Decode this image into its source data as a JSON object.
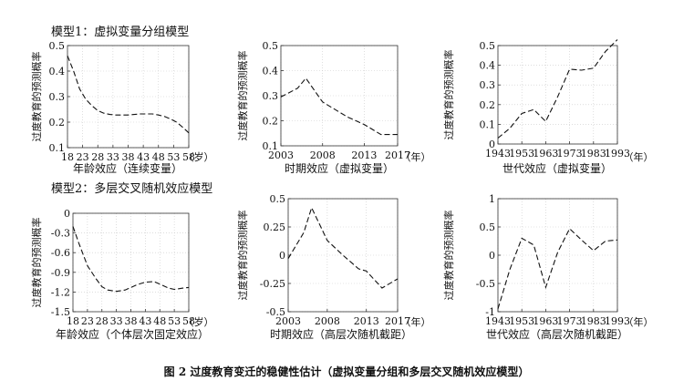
{
  "figure": {
    "caption": "图 2   过度教育变迁的稳健性估计（虚拟变量分组和多层交叉随机效应模型）",
    "model1_title": "模型1：虚拟变量分组模型",
    "model2_title": "模型2：多层交叉随机效应模型"
  },
  "chart_data": [
    {
      "type": "line",
      "ylabel": "过度教育的预测概率",
      "xlabel": "年龄效应（连续变量）",
      "x_unit": "（岁）",
      "ylim": [
        0.1,
        0.5
      ],
      "yticks": [
        0.1,
        0.2,
        0.3,
        0.4,
        0.5
      ],
      "ytick_labels": [
        "0.1",
        "0.2",
        "0.3",
        "0.4",
        "0.5"
      ],
      "xlim": [
        18,
        58
      ],
      "xticks": [
        18,
        23,
        28,
        33,
        38,
        43,
        48,
        53,
        58
      ],
      "xtick_labels": [
        "18",
        "23",
        "28",
        "33",
        "38",
        "43",
        "48",
        "53",
        "58"
      ],
      "grid": true,
      "x": [
        18,
        20,
        22,
        24,
        26,
        28,
        30,
        32,
        34,
        36,
        38,
        40,
        42,
        44,
        46,
        48,
        50,
        52,
        54,
        56,
        58
      ],
      "y": [
        0.46,
        0.4,
        0.33,
        0.29,
        0.265,
        0.245,
        0.235,
        0.23,
        0.228,
        0.228,
        0.228,
        0.23,
        0.232,
        0.232,
        0.232,
        0.228,
        0.222,
        0.212,
        0.2,
        0.18,
        0.158
      ]
    },
    {
      "type": "line",
      "ylabel": "过度教育的预测概率",
      "xlabel": "时期效应（虚拟变量）",
      "x_unit": "（年）",
      "ylim": [
        0.1,
        0.5
      ],
      "yticks": [
        0.1,
        0.2,
        0.3,
        0.4,
        0.5
      ],
      "ytick_labels": [
        "0.1",
        "0.2",
        "0.3",
        "0.4",
        "0.5"
      ],
      "xlim": [
        2003,
        2017
      ],
      "xticks": [
        2003,
        2008,
        2013,
        2017
      ],
      "xtick_labels": [
        "2003",
        "2008",
        "2013",
        "2017"
      ],
      "grid": true,
      "x": [
        2003,
        2005,
        2006,
        2008,
        2010,
        2011,
        2012,
        2013,
        2015,
        2017
      ],
      "y": [
        0.295,
        0.33,
        0.37,
        0.275,
        0.235,
        0.215,
        0.2,
        0.185,
        0.145,
        0.145
      ]
    },
    {
      "type": "line",
      "ylabel": "过度教育的预测概率",
      "xlabel": "世代效应（虚拟变量）",
      "x_unit": "（年）",
      "ylim": [
        0.0,
        0.5
      ],
      "yticks": [
        0.0,
        0.1,
        0.2,
        0.3,
        0.4,
        0.5
      ],
      "ytick_labels": [
        "0",
        "0.1",
        "0.2",
        "0.3",
        "0.4",
        "0.5"
      ],
      "xlim": [
        1943,
        1993
      ],
      "xticks": [
        1943,
        1953,
        1963,
        1973,
        1983,
        1993
      ],
      "xtick_labels": [
        "1943",
        "1953",
        "1963",
        "1973",
        "1983",
        "1993"
      ],
      "grid": true,
      "x": [
        1943,
        1948,
        1953,
        1958,
        1963,
        1968,
        1973,
        1978,
        1983,
        1988,
        1993
      ],
      "y": [
        0.03,
        0.08,
        0.155,
        0.175,
        0.115,
        0.24,
        0.38,
        0.375,
        0.385,
        0.47,
        0.53
      ]
    },
    {
      "type": "line",
      "ylabel": "过度教育的预测概率",
      "xlabel": "年龄效应（个体层次固定效应）",
      "x_unit": "（岁）",
      "ylim": [
        -1.5,
        0
      ],
      "yticks": [
        -1.5,
        -1.2,
        -0.9,
        -0.6,
        -0.3,
        0
      ],
      "ytick_labels": [
        "-1.5",
        "-1.2",
        "-0.9",
        "-0.6",
        "-0.3",
        "0"
      ],
      "xlim": [
        18,
        58
      ],
      "xticks": [
        18,
        23,
        28,
        33,
        38,
        43,
        48,
        53,
        58
      ],
      "xtick_labels": [
        "18",
        "23",
        "28",
        "33",
        "38",
        "43",
        "48",
        "53",
        "58"
      ],
      "grid": true,
      "x": [
        18,
        20,
        23,
        26,
        28,
        30,
        33,
        36,
        38,
        40,
        43,
        46,
        48,
        51,
        53,
        56,
        58
      ],
      "y": [
        -0.2,
        -0.45,
        -0.8,
        -1.0,
        -1.12,
        -1.17,
        -1.19,
        -1.17,
        -1.13,
        -1.09,
        -1.05,
        -1.04,
        -1.08,
        -1.14,
        -1.16,
        -1.14,
        -1.13
      ]
    },
    {
      "type": "line",
      "ylabel": "过度教育的预测概率",
      "xlabel": "时期效应（高层次随机截距）",
      "x_unit": "（年）",
      "ylim": [
        -0.5,
        0.5
      ],
      "yticks": [
        -0.5,
        -0.25,
        0,
        0.25,
        0.5
      ],
      "ytick_labels": [
        "-0.5",
        "-0.25",
        "0",
        "0.25",
        "0.5"
      ],
      "xlim": [
        2003,
        2017
      ],
      "xticks": [
        2003,
        2008,
        2013,
        2017
      ],
      "xtick_labels": [
        "2003",
        "2008",
        "2013",
        "2017"
      ],
      "grid": true,
      "x": [
        2003,
        2005,
        2006,
        2008,
        2010,
        2011,
        2012,
        2013,
        2015,
        2017
      ],
      "y": [
        -0.03,
        0.2,
        0.42,
        0.13,
        0.0,
        -0.06,
        -0.12,
        -0.14,
        -0.29,
        -0.21
      ]
    },
    {
      "type": "line",
      "ylabel": "过度教育的预测概率",
      "xlabel": "世代效应（高层次随机截距）",
      "x_unit": "（年）",
      "ylim": [
        -1,
        1
      ],
      "yticks": [
        -1,
        -0.5,
        0,
        0.5,
        1
      ],
      "ytick_labels": [
        "-1",
        "-0.5",
        "0",
        "0.5",
        "1"
      ],
      "xlim": [
        1943,
        1993
      ],
      "xticks": [
        1943,
        1953,
        1963,
        1973,
        1983,
        1993
      ],
      "xtick_labels": [
        "1943",
        "1953",
        "1963",
        "1973",
        "1983",
        "1993"
      ],
      "grid": true,
      "x": [
        1943,
        1948,
        1953,
        1958,
        1963,
        1968,
        1973,
        1978,
        1983,
        1988,
        1993
      ],
      "y": [
        -0.95,
        -0.25,
        0.3,
        0.18,
        -0.57,
        0.05,
        0.47,
        0.27,
        0.08,
        0.25,
        0.27
      ]
    }
  ]
}
